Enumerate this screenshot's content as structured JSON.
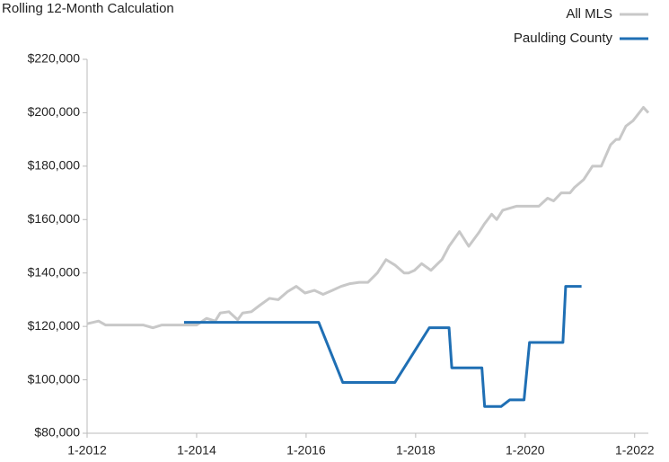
{
  "chart_data": {
    "type": "line",
    "title": "Rolling 12-Month Calculation",
    "legend": "top-right",
    "grid": false,
    "xlim": [
      2012,
      2022.25
    ],
    "xticks": [
      {
        "value": 2012,
        "label": "1-2012"
      },
      {
        "value": 2014,
        "label": "1-2014"
      },
      {
        "value": 2016,
        "label": "1-2016"
      },
      {
        "value": 2018,
        "label": "1-2018"
      },
      {
        "value": 2020,
        "label": "1-2020"
      },
      {
        "value": 2022,
        "label": "1-2022"
      }
    ],
    "ylim": [
      80000,
      220000
    ],
    "yticks": [
      {
        "value": 80000,
        "label": "$80,000"
      },
      {
        "value": 100000,
        "label": "$100,000"
      },
      {
        "value": 120000,
        "label": "$120,000"
      },
      {
        "value": 140000,
        "label": "$140,000"
      },
      {
        "value": 160000,
        "label": "$160,000"
      },
      {
        "value": 180000,
        "label": "$180,000"
      },
      {
        "value": 200000,
        "label": "$200,000"
      },
      {
        "value": 220000,
        "label": "$220,000"
      }
    ],
    "series": [
      {
        "name": "All MLS",
        "color": "#c8c8c8",
        "x": [
          2012.0,
          2012.21,
          2012.34,
          2013.03,
          2013.2,
          2013.36,
          2014.0,
          2014.18,
          2014.34,
          2014.43,
          2014.59,
          2014.75,
          2014.84,
          2015.0,
          2015.16,
          2015.33,
          2015.49,
          2015.66,
          2015.82,
          2015.98,
          2016.15,
          2016.31,
          2016.48,
          2016.64,
          2016.8,
          2016.97,
          2017.13,
          2017.3,
          2017.46,
          2017.62,
          2017.79,
          2017.87,
          2017.98,
          2018.11,
          2018.28,
          2018.48,
          2018.61,
          2018.8,
          2018.97,
          2019.15,
          2019.26,
          2019.39,
          2019.48,
          2019.59,
          2019.84,
          2020.25,
          2020.41,
          2020.52,
          2020.66,
          2020.82,
          2020.9,
          2021.07,
          2021.23,
          2021.39,
          2021.56,
          2021.66,
          2021.72,
          2021.84,
          2021.97,
          2022.16,
          2022.25
        ],
        "values": [
          121000,
          122000,
          120500,
          120500,
          119500,
          120500,
          120500,
          123000,
          122000,
          125000,
          125500,
          122500,
          125000,
          125500,
          128000,
          130500,
          130000,
          133000,
          135000,
          132500,
          133500,
          132000,
          133500,
          135000,
          136000,
          136500,
          136500,
          140000,
          145000,
          143000,
          140000,
          140000,
          141000,
          143500,
          141000,
          145000,
          150000,
          155500,
          150000,
          155000,
          158500,
          162000,
          160000,
          163500,
          165000,
          165000,
          168000,
          167000,
          170000,
          170000,
          172000,
          175000,
          180000,
          180000,
          188000,
          190000,
          190000,
          195000,
          197000,
          202000,
          200000
        ]
      },
      {
        "name": "Paulding County",
        "color": "#1f6fb4",
        "x": [
          2013.77,
          2016.23,
          2016.67,
          2017.62,
          2018.25,
          2018.61,
          2018.66,
          2019.21,
          2019.26,
          2019.56,
          2019.72,
          2019.98,
          2020.08,
          2020.69,
          2020.74,
          2021.03
        ],
        "values": [
          121500,
          121500,
          99000,
          99000,
          119500,
          119500,
          104500,
          104500,
          90000,
          90000,
          92500,
          92500,
          114000,
          114000,
          135000,
          135000
        ]
      }
    ]
  }
}
